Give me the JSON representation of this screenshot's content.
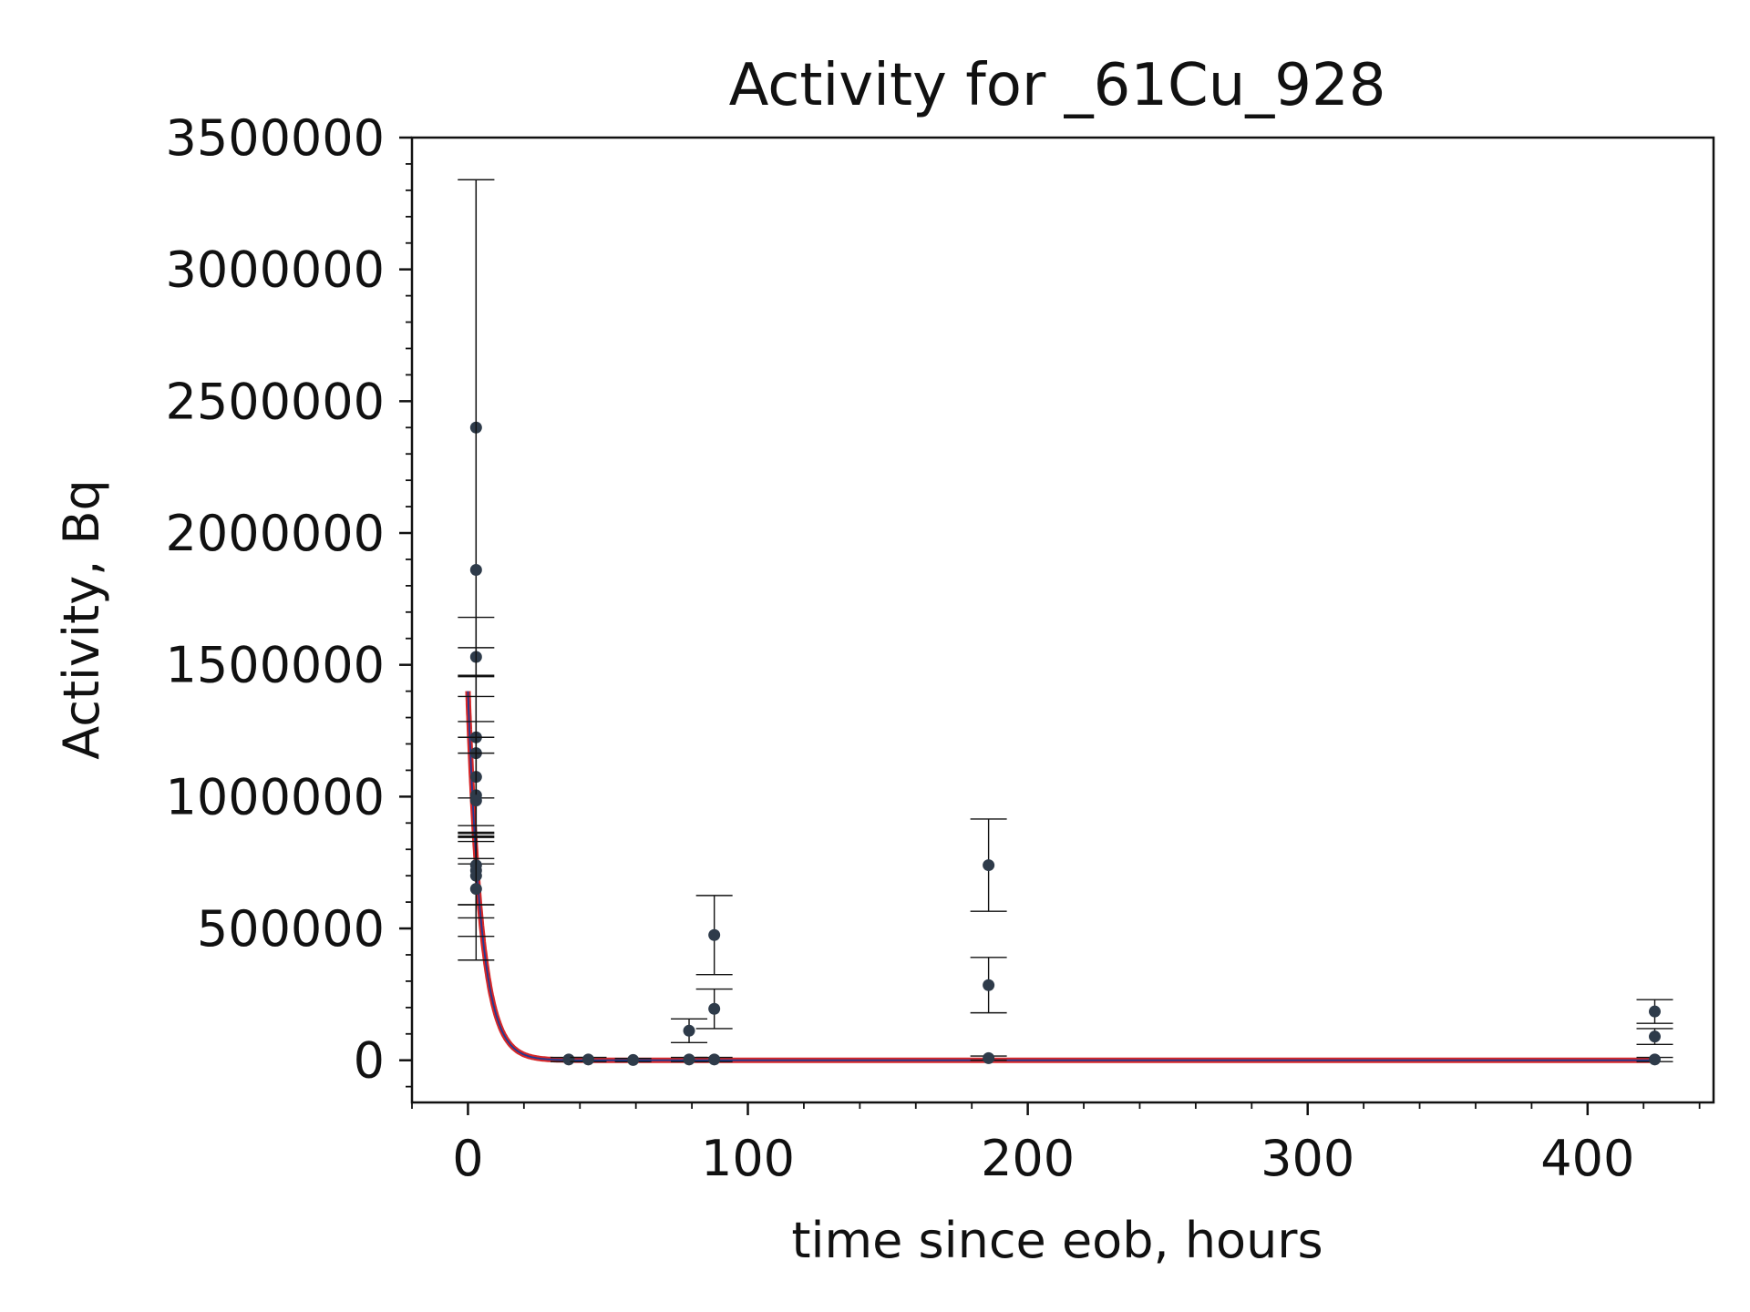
{
  "chart_data": {
    "type": "scatter",
    "title": "Activity for _61Cu_928",
    "xlabel": "time since eob, hours",
    "ylabel": "Activity, Bq",
    "xlim": [
      -20,
      445
    ],
    "ylim": [
      -160000,
      3500000
    ],
    "x_ticks": [
      0,
      100,
      200,
      300,
      400
    ],
    "x_tick_labels": [
      "0",
      "100",
      "200",
      "300",
      "400"
    ],
    "y_ticks": [
      0,
      500000,
      1000000,
      1500000,
      2000000,
      2500000,
      3000000,
      3500000
    ],
    "y_tick_labels": [
      "0",
      "500000",
      "1000000",
      "1500000",
      "2000000",
      "2500000",
      "3000000",
      "3500000"
    ],
    "grid": false,
    "colors": {
      "points": "#2e3b4a",
      "errorbars": "#111111",
      "fit_outer": "#d62728",
      "fit_inner": "#1f3a93"
    },
    "series": [
      {
        "type": "errorbar",
        "points": [
          {
            "x": 2.9,
            "y": 2400000,
            "err": 940000
          },
          {
            "x": 2.9,
            "y": 1860000,
            "err": 1480000
          },
          {
            "x": 2.9,
            "y": 1530000,
            "err": 150000
          },
          {
            "x": 2.9,
            "y": 1225000,
            "err": 230000
          },
          {
            "x": 2.9,
            "y": 1165000,
            "err": 400000
          },
          {
            "x": 2.9,
            "y": 1075000,
            "err": 210000
          },
          {
            "x": 2.9,
            "y": 1005000,
            "err": 160000
          },
          {
            "x": 2.9,
            "y": 985000,
            "err": 240000
          },
          {
            "x": 2.9,
            "y": 740000,
            "err": 150000
          },
          {
            "x": 2.9,
            "y": 720000,
            "err": 130000
          },
          {
            "x": 2.9,
            "y": 700000,
            "err": 160000
          },
          {
            "x": 2.9,
            "y": 650000,
            "err": 180000
          },
          {
            "x": 36,
            "y": 3000,
            "err": 8000
          },
          {
            "x": 43,
            "y": 3000,
            "err": 8000
          },
          {
            "x": 59,
            "y": 1000,
            "err": 6000
          },
          {
            "x": 79,
            "y": 112000,
            "err": 45000
          },
          {
            "x": 79,
            "y": 3000,
            "err": 8000
          },
          {
            "x": 88,
            "y": 475000,
            "err": 150000
          },
          {
            "x": 88,
            "y": 195000,
            "err": 75000
          },
          {
            "x": 88,
            "y": 3000,
            "err": 8000
          },
          {
            "x": 186,
            "y": 740000,
            "err": 175000
          },
          {
            "x": 186,
            "y": 285000,
            "err": 105000
          },
          {
            "x": 186,
            "y": 8000,
            "err": 8000
          },
          {
            "x": 424,
            "y": 185000,
            "err": 45000
          },
          {
            "x": 424,
            "y": 90000,
            "err": 30000
          },
          {
            "x": 424,
            "y": 3000,
            "err": 8000
          }
        ]
      },
      {
        "type": "fit-line",
        "model": "exponential-decay",
        "a0": 1400000,
        "half_life_hours": 3.33,
        "x_range": [
          0,
          424
        ]
      }
    ]
  }
}
